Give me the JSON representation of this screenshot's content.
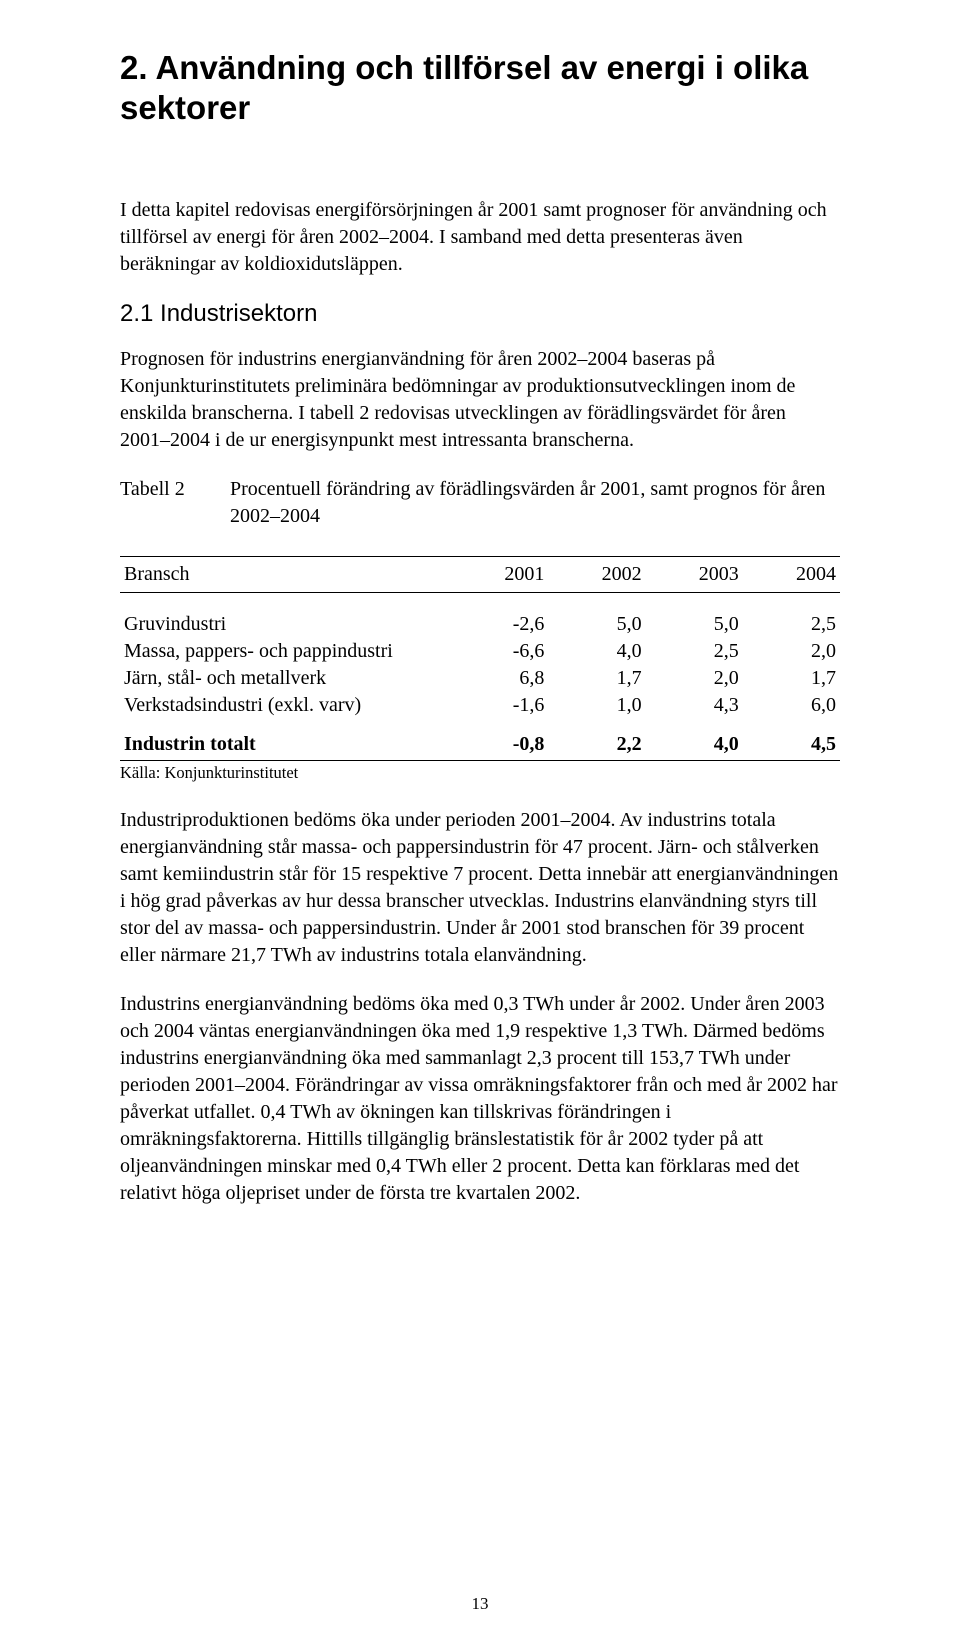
{
  "chapter": {
    "title": "2. Användning och tillförsel av energi i olika sektorer"
  },
  "intro": {
    "p1": "I detta kapitel redovisas energiförsörjningen år 2001 samt prognoser för användning och tillförsel av energi för åren 2002–2004. I samband med detta presenteras även beräkningar av koldioxidutsläppen."
  },
  "section21": {
    "title": "2.1 Industrisektorn",
    "p1": "Prognosen för industrins energianvändning för åren 2002–2004 baseras på Konjunkturinstitutets preliminära bedömningar av produktionsutvecklingen inom de enskilda branscherna. I tabell 2 redovisas utvecklingen av förädlingsvärdet för åren 2001–2004 i de ur energisynpunkt mest intressanta branscherna."
  },
  "table2": {
    "label": "Tabell 2",
    "caption": "Procentuell förändring av förädlingsvärden år 2001, samt prognos för åren 2002–2004",
    "columns": [
      "Bransch",
      "2001",
      "2002",
      "2003",
      "2004"
    ],
    "rows": [
      [
        "Gruvindustri",
        "-2,6",
        "5,0",
        "5,0",
        "2,5"
      ],
      [
        "Massa, pappers- och pappindustri",
        "-6,6",
        "4,0",
        "2,5",
        "2,0"
      ],
      [
        "Järn, stål- och metallverk",
        "6,8",
        "1,7",
        "2,0",
        "1,7"
      ],
      [
        "Verkstadsindustri (exkl. varv)",
        "-1,6",
        "1,0",
        "4,3",
        "6,0"
      ]
    ],
    "total": [
      "Industrin totalt",
      "-0,8",
      "2,2",
      "4,0",
      "4,5"
    ],
    "source": "Källa: Konjunkturinstitutet",
    "col_widths": [
      "46%",
      "13.5%",
      "13.5%",
      "13.5%",
      "13.5%"
    ]
  },
  "after": {
    "p1": "Industriproduktionen bedöms öka under perioden 2001–2004. Av industrins totala energianvändning står massa- och pappersindustrin för 47 procent. Järn- och stålverken samt kemiindustrin står för 15 respektive 7 procent. Detta innebär att energianvändningen i hög grad påverkas av hur dessa branscher utvecklas. Industrins elanvändning styrs till stor del av massa- och pappersindustrin. Under år 2001 stod branschen för 39 procent eller närmare 21,7 TWh av industrins totala elanvändning.",
    "p2": "Industrins energianvändning bedöms öka med 0,3 TWh under år 2002.  Under åren 2003 och 2004 väntas energianvändningen öka med 1,9 respektive 1,3 TWh. Därmed bedöms industrins energianvändning öka med sammanlagt 2,3 procent till 153,7 TWh under perioden 2001–2004. Förändringar av vissa omräkningsfaktorer från och med år 2002 har påverkat utfallet. 0,4 TWh av ökningen kan tillskrivas förändringen i omräkningsfaktorerna. Hittills tillgänglig bränslestatistik för år 2002 tyder på att oljeanvändningen minskar med 0,4 TWh eller 2 procent. Detta kan förklaras med det relativt höga oljepriset under de första tre kvartalen 2002."
  },
  "pagenum": "13"
}
